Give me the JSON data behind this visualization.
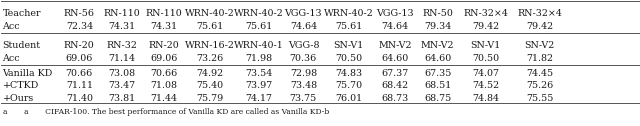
{
  "teacher_row1": [
    "Teacher",
    "RN-56",
    "RN-110",
    "RN-110",
    "WRN-40-2",
    "WRN-40-2",
    "VGG-13",
    "WRN-40-2",
    "VGG-13",
    "RN-50",
    "RN-32×4",
    "RN-32×4"
  ],
  "teacher_row2": [
    "Acc",
    "72.34",
    "74.31",
    "74.31",
    "75.61",
    "75.61",
    "74.64",
    "75.61",
    "74.64",
    "79.34",
    "79.42",
    "79.42"
  ],
  "student_row1": [
    "Student",
    "RN-20",
    "RN-32",
    "RN-20",
    "WRN-16-2",
    "WRN-40-1",
    "VGG-8",
    "SN-V1",
    "MN-V2",
    "MN-V2",
    "SN-V1",
    "SN-V2"
  ],
  "student_row2": [
    "Acc",
    "69.06",
    "71.14",
    "69.06",
    "73.26",
    "71.98",
    "70.36",
    "70.50",
    "64.60",
    "64.60",
    "70.50",
    "71.82"
  ],
  "vanilla_kd": [
    "Vanilla KD",
    "70.66",
    "73.08",
    "70.66",
    "74.92",
    "73.54",
    "72.98",
    "74.83",
    "67.37",
    "67.35",
    "74.07",
    "74.45"
  ],
  "ctkd": [
    "+CTKD",
    "71.11",
    "73.47",
    "71.08",
    "75.40",
    "73.97",
    "73.48",
    "75.70",
    "68.42",
    "68.51",
    "74.52",
    "75.26"
  ],
  "ours": [
    "+Ours",
    "71.40",
    "73.81",
    "71.44",
    "75.79",
    "74.17",
    "73.75",
    "76.01",
    "68.73",
    "68.75",
    "74.84",
    "75.55"
  ],
  "bg_color": "#ffffff",
  "text_color": "#1a1a1a",
  "line_color": "#555555",
  "font_size": 6.8,
  "caption": "a       a       CIFAR-100. The best performance of Vanilla KD are called as Vanilla KD-b"
}
